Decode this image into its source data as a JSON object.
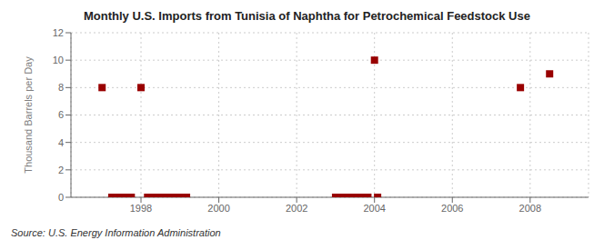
{
  "chart_data": {
    "type": "scatter",
    "title": "Monthly U.S. Imports from Tunisia of Naphtha for Petrochemical Feedstock Use",
    "ylabel": "Thousand Barrels per Day",
    "annotation": "Source: U.S. Energy Information Administration",
    "color": "#990000",
    "marker": "square",
    "grid": true,
    "xlim": [
      1996.2,
      2009.5
    ],
    "ylim": [
      0,
      12
    ],
    "xticks": [
      1998,
      2000,
      2002,
      2004,
      2006,
      2008
    ],
    "yticks": [
      0,
      2,
      4,
      6,
      8,
      10,
      12
    ],
    "x": [
      1997.0,
      1997.25,
      1997.42,
      1997.58,
      1997.75,
      1998.0,
      1998.17,
      1998.33,
      1998.5,
      1998.67,
      1998.83,
      1999.0,
      1999.17,
      2003.0,
      2003.17,
      2003.33,
      2003.5,
      2003.67,
      2003.83,
      2004.0,
      2004.08,
      2007.75,
      2008.5
    ],
    "values": [
      8,
      0,
      0,
      0,
      0,
      8,
      0,
      0,
      0,
      0,
      0,
      0,
      0,
      0,
      0,
      0,
      0,
      0,
      0,
      10,
      0,
      8,
      9
    ]
  }
}
